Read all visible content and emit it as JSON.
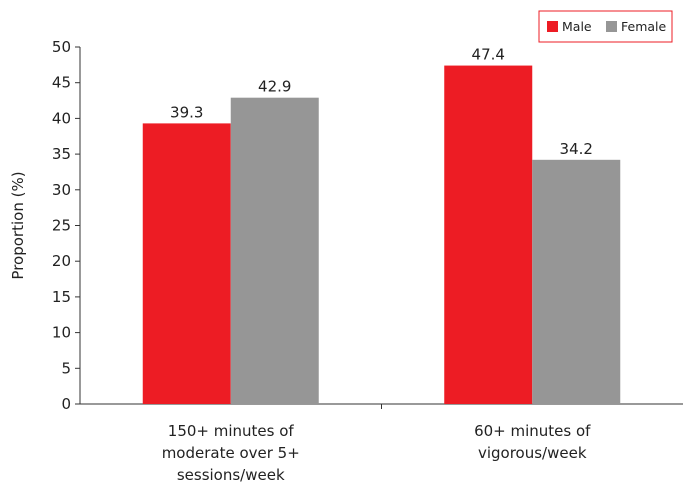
{
  "chart_data": {
    "type": "bar",
    "title": "",
    "xlabel": "",
    "ylabel": "Proportion (%)",
    "ylim": [
      0,
      50
    ],
    "yticks": [
      0,
      5,
      10,
      15,
      20,
      25,
      30,
      35,
      40,
      45,
      50
    ],
    "grid": false,
    "legend_position": "top-right",
    "categories": [
      [
        "150+ minutes of",
        "moderate over 5+",
        "sessions/week"
      ],
      [
        "60+ minutes of",
        "vigorous/week"
      ]
    ],
    "series": [
      {
        "name": "Male",
        "color": "#ed1c24",
        "values": [
          39.3,
          47.4
        ]
      },
      {
        "name": "Female",
        "color": "#969696",
        "values": [
          42.9,
          34.2
        ]
      }
    ]
  }
}
